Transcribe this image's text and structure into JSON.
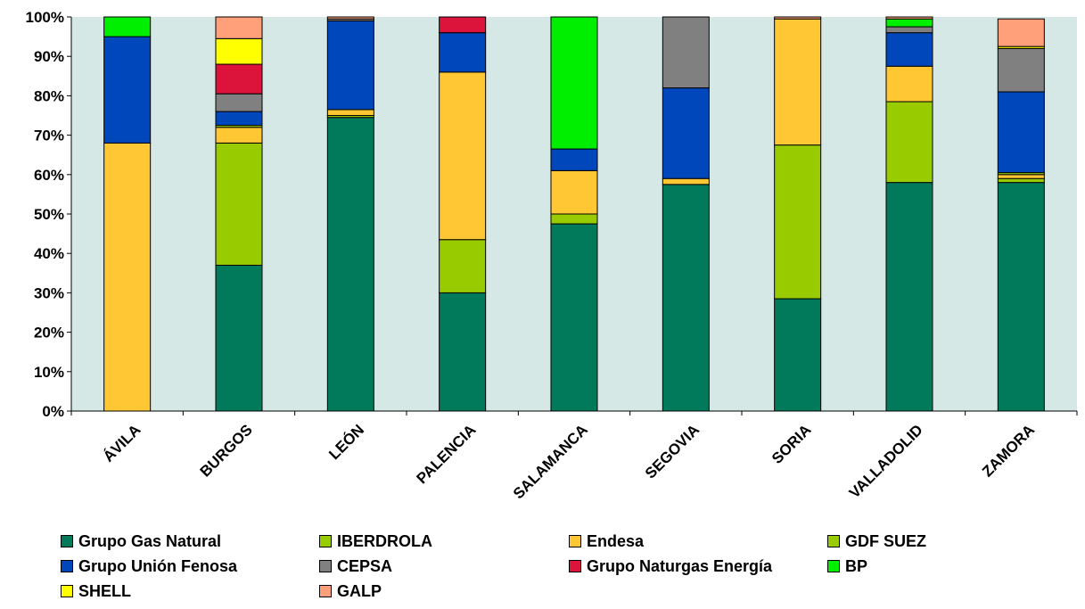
{
  "chart_data": {
    "type": "bar",
    "stacked": true,
    "percent_stacked": true,
    "title": "",
    "xlabel": "",
    "ylabel": "",
    "ylim": [
      0,
      100
    ],
    "y_ticks": [
      "0%",
      "10%",
      "20%",
      "30%",
      "40%",
      "50%",
      "60%",
      "70%",
      "80%",
      "90%",
      "100%"
    ],
    "grid": false,
    "plot_background": "#d5e8e6",
    "legend_position": "bottom",
    "categories": [
      "ÁVILA",
      "BURGOS",
      "LEÓN",
      "PALENCIA",
      "SALAMANCA",
      "SEGOVIA",
      "SORIA",
      "VALLADOLID",
      "ZAMORA"
    ],
    "series": [
      {
        "name": "Grupo Gas Natural",
        "color": "#007a5a",
        "values": [
          0,
          37,
          74.5,
          30,
          47.5,
          57.5,
          28.5,
          58,
          58
        ]
      },
      {
        "name": "IBERDROLA",
        "color": "#99cc00",
        "values": [
          0,
          31,
          0.5,
          13.5,
          2.5,
          0,
          39,
          20.5,
          1
        ]
      },
      {
        "name": "Endesa",
        "color": "#ffc733",
        "values": [
          68,
          4,
          1.5,
          42.5,
          11,
          1.5,
          32,
          9,
          1
        ]
      },
      {
        "name": "GDF SUEZ",
        "color": "#99cc00",
        "values": [
          0,
          0.5,
          0,
          0,
          0,
          0,
          0,
          0,
          0.5
        ]
      },
      {
        "name": "Grupo Unión Fenosa",
        "color": "#0047bb",
        "values": [
          27,
          3.5,
          22.5,
          10,
          5.5,
          23,
          0,
          8.5,
          20.5
        ]
      },
      {
        "name": "CEPSA",
        "color": "#808080",
        "values": [
          0,
          4.5,
          0.5,
          0,
          0,
          18,
          0,
          1.5,
          11
        ]
      },
      {
        "name": "Grupo Naturgas Energía",
        "color": "#dc143c",
        "values": [
          0,
          7.5,
          0,
          4,
          0,
          0,
          0,
          0,
          0
        ]
      },
      {
        "name": "BP",
        "color": "#00ee00",
        "values": [
          5,
          0,
          0,
          0,
          33.5,
          0,
          0,
          2,
          0
        ]
      },
      {
        "name": "SHELL",
        "color": "#ffff00",
        "values": [
          0,
          6.5,
          0,
          0,
          0,
          0,
          0,
          0,
          0.5
        ]
      },
      {
        "name": "GALP",
        "color": "#ffa07a",
        "values": [
          0,
          5.5,
          0.5,
          0,
          0,
          0,
          0.5,
          0.5,
          7
        ]
      }
    ]
  }
}
